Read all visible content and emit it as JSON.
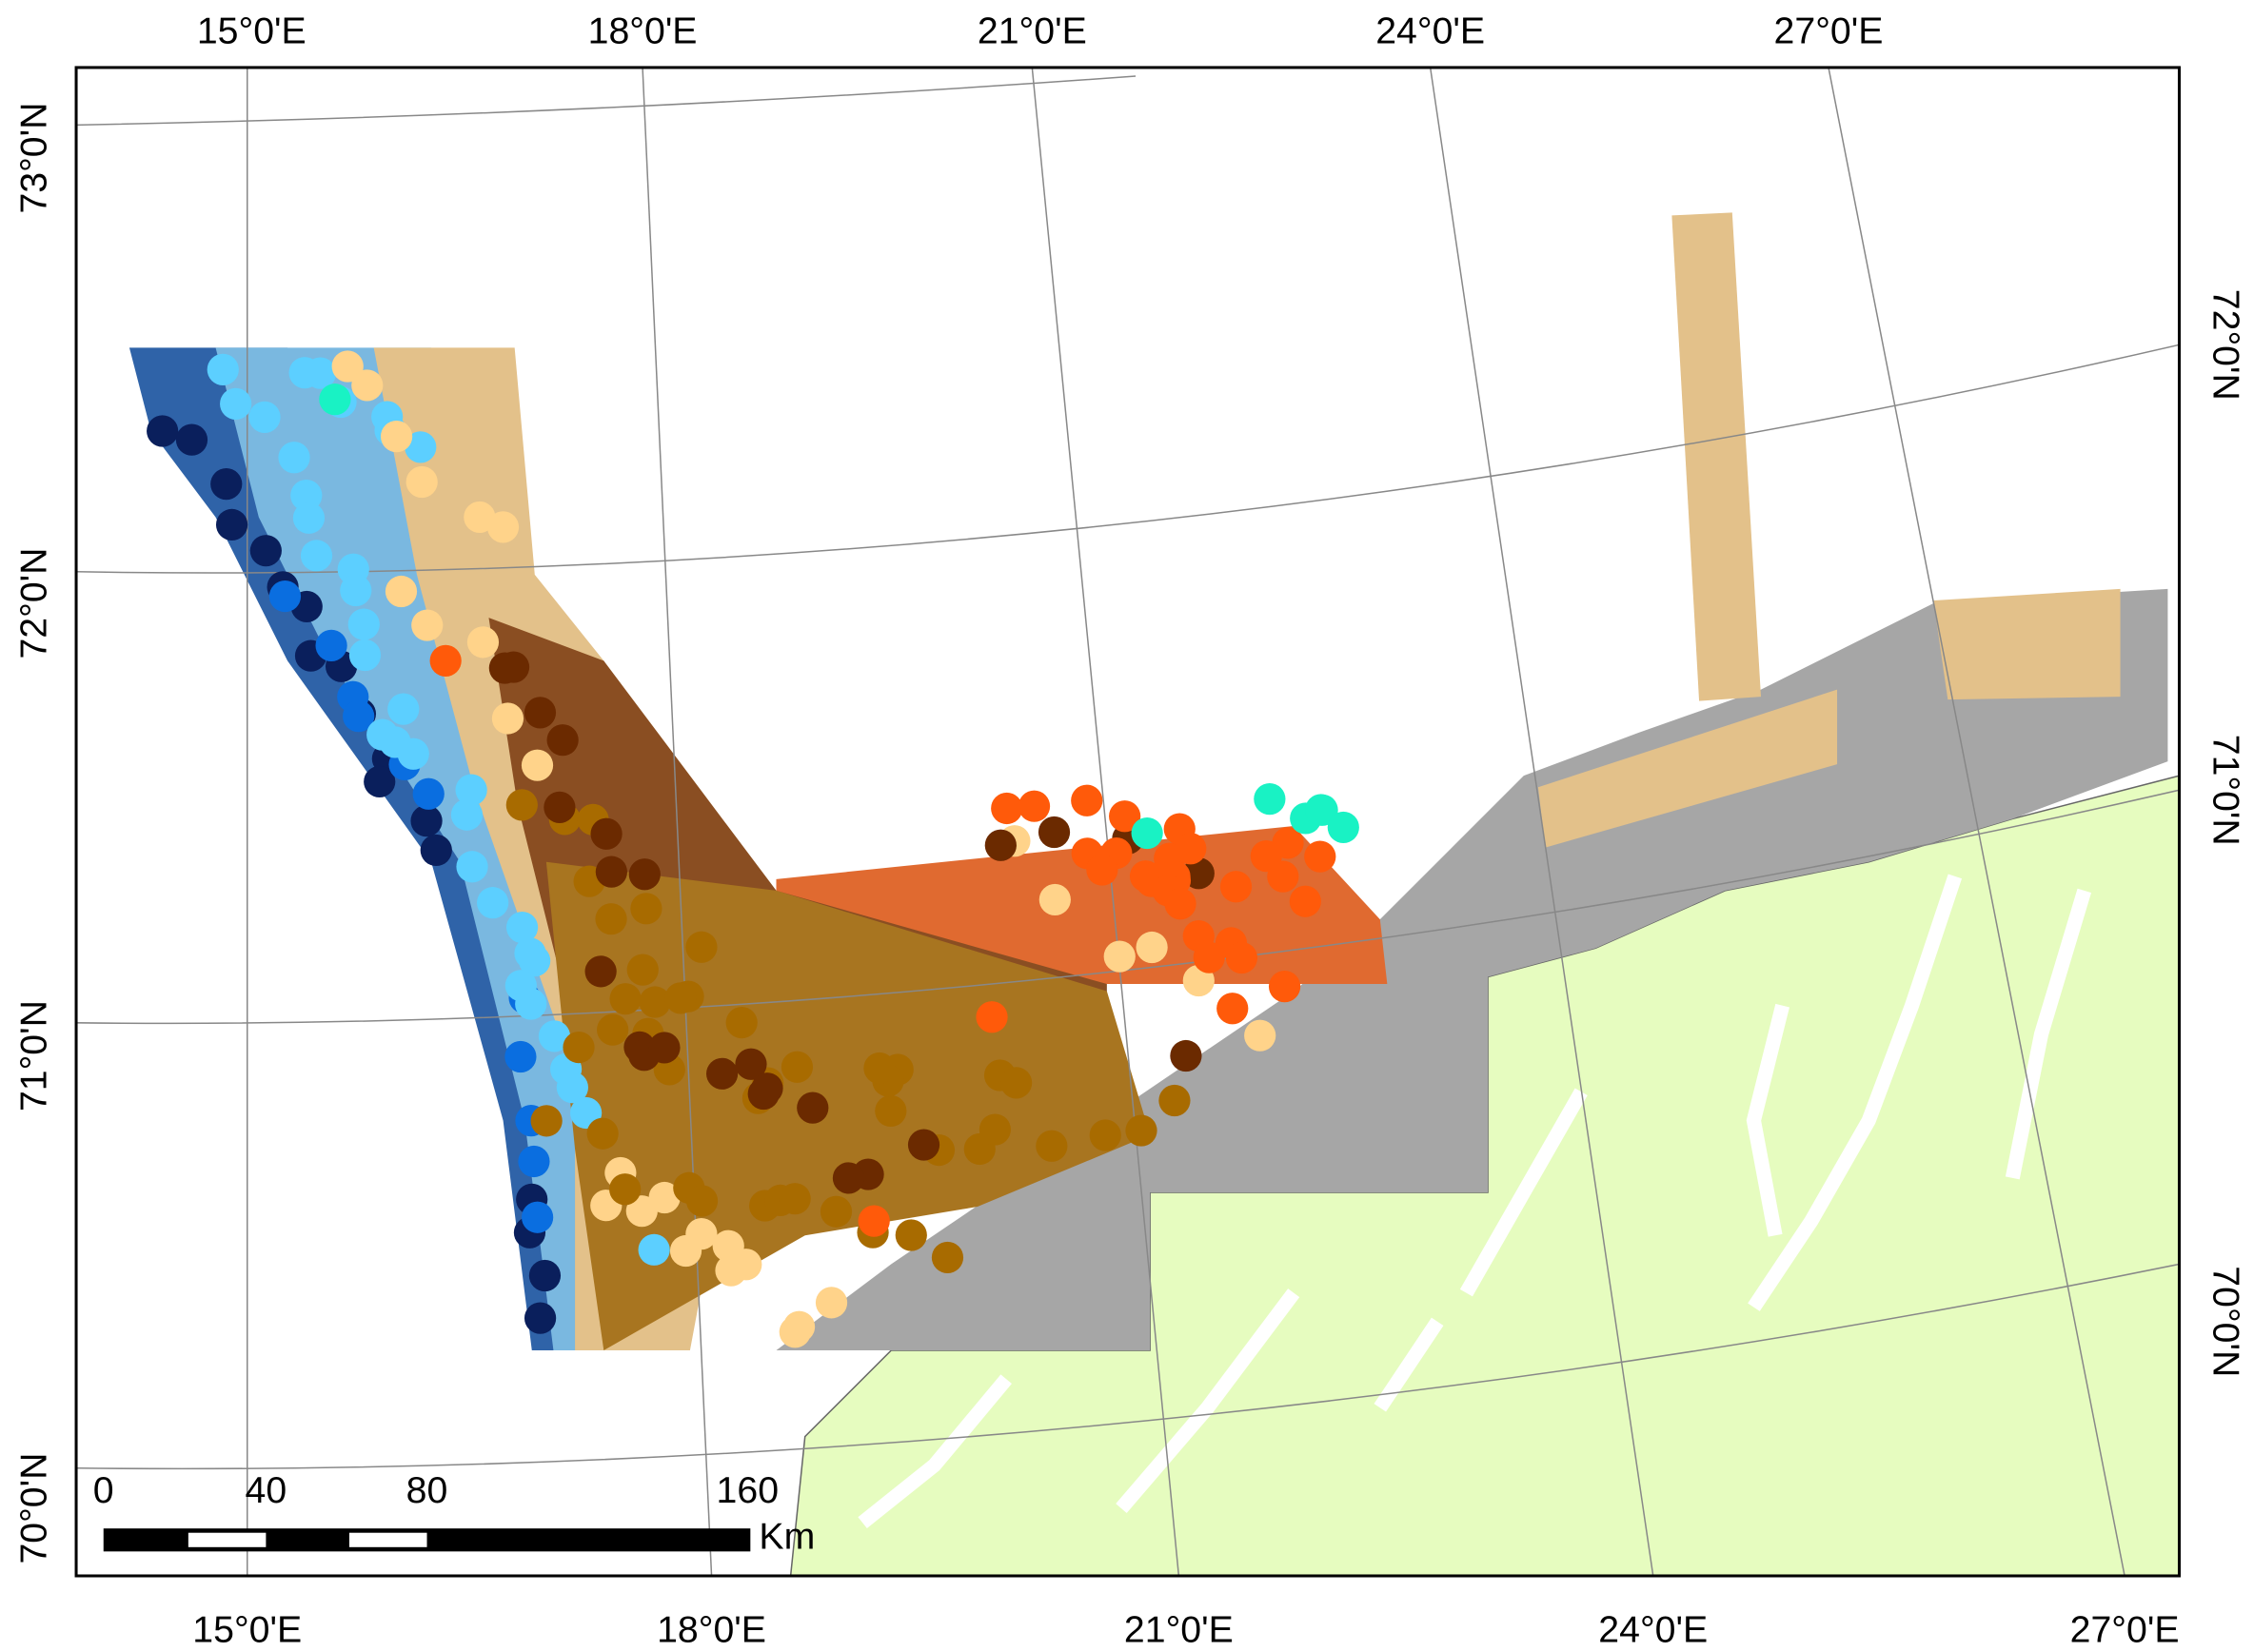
{
  "map": {
    "top_labels": [
      "15°0'E",
      "18°0'E",
      "21°0'E",
      "24°0'E",
      "27°0'E"
    ],
    "bottom_labels": [
      "15°0'E",
      "18°0'E",
      "21°0'E",
      "24°0'E",
      "27°0'E"
    ],
    "left_labels": [
      "73°0'N",
      "72°0'N",
      "71°0'N",
      "70°0'N"
    ],
    "right_labels": [
      "72°0'N",
      "71°0'N",
      "70°0'N"
    ],
    "scale_bar": {
      "labels": [
        "0",
        "40",
        "80",
        "160"
      ],
      "unit": "Km"
    }
  }
}
